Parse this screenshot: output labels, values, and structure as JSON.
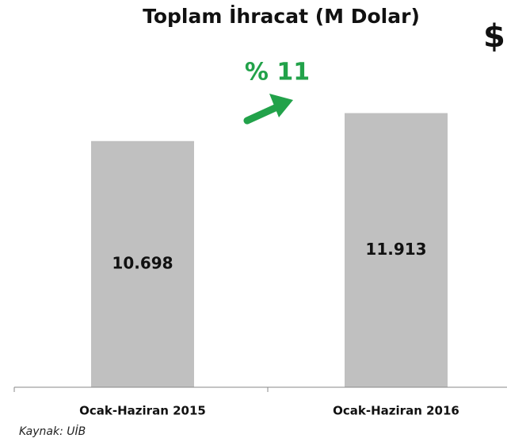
{
  "chart_data": {
    "type": "bar",
    "title": "Toplam İhracat (M Dolar)",
    "categories": [
      "Ocak-Haziran 2015",
      "Ocak-Haziran 2016"
    ],
    "values": [
      10698,
      11913
    ],
    "value_labels": [
      "10.698",
      "11.913"
    ],
    "color": "#c0c0c0",
    "ylim": [
      0,
      12000
    ],
    "annotations": [
      "% 11",
      "$"
    ],
    "source": "Kaynak: UİB"
  }
}
